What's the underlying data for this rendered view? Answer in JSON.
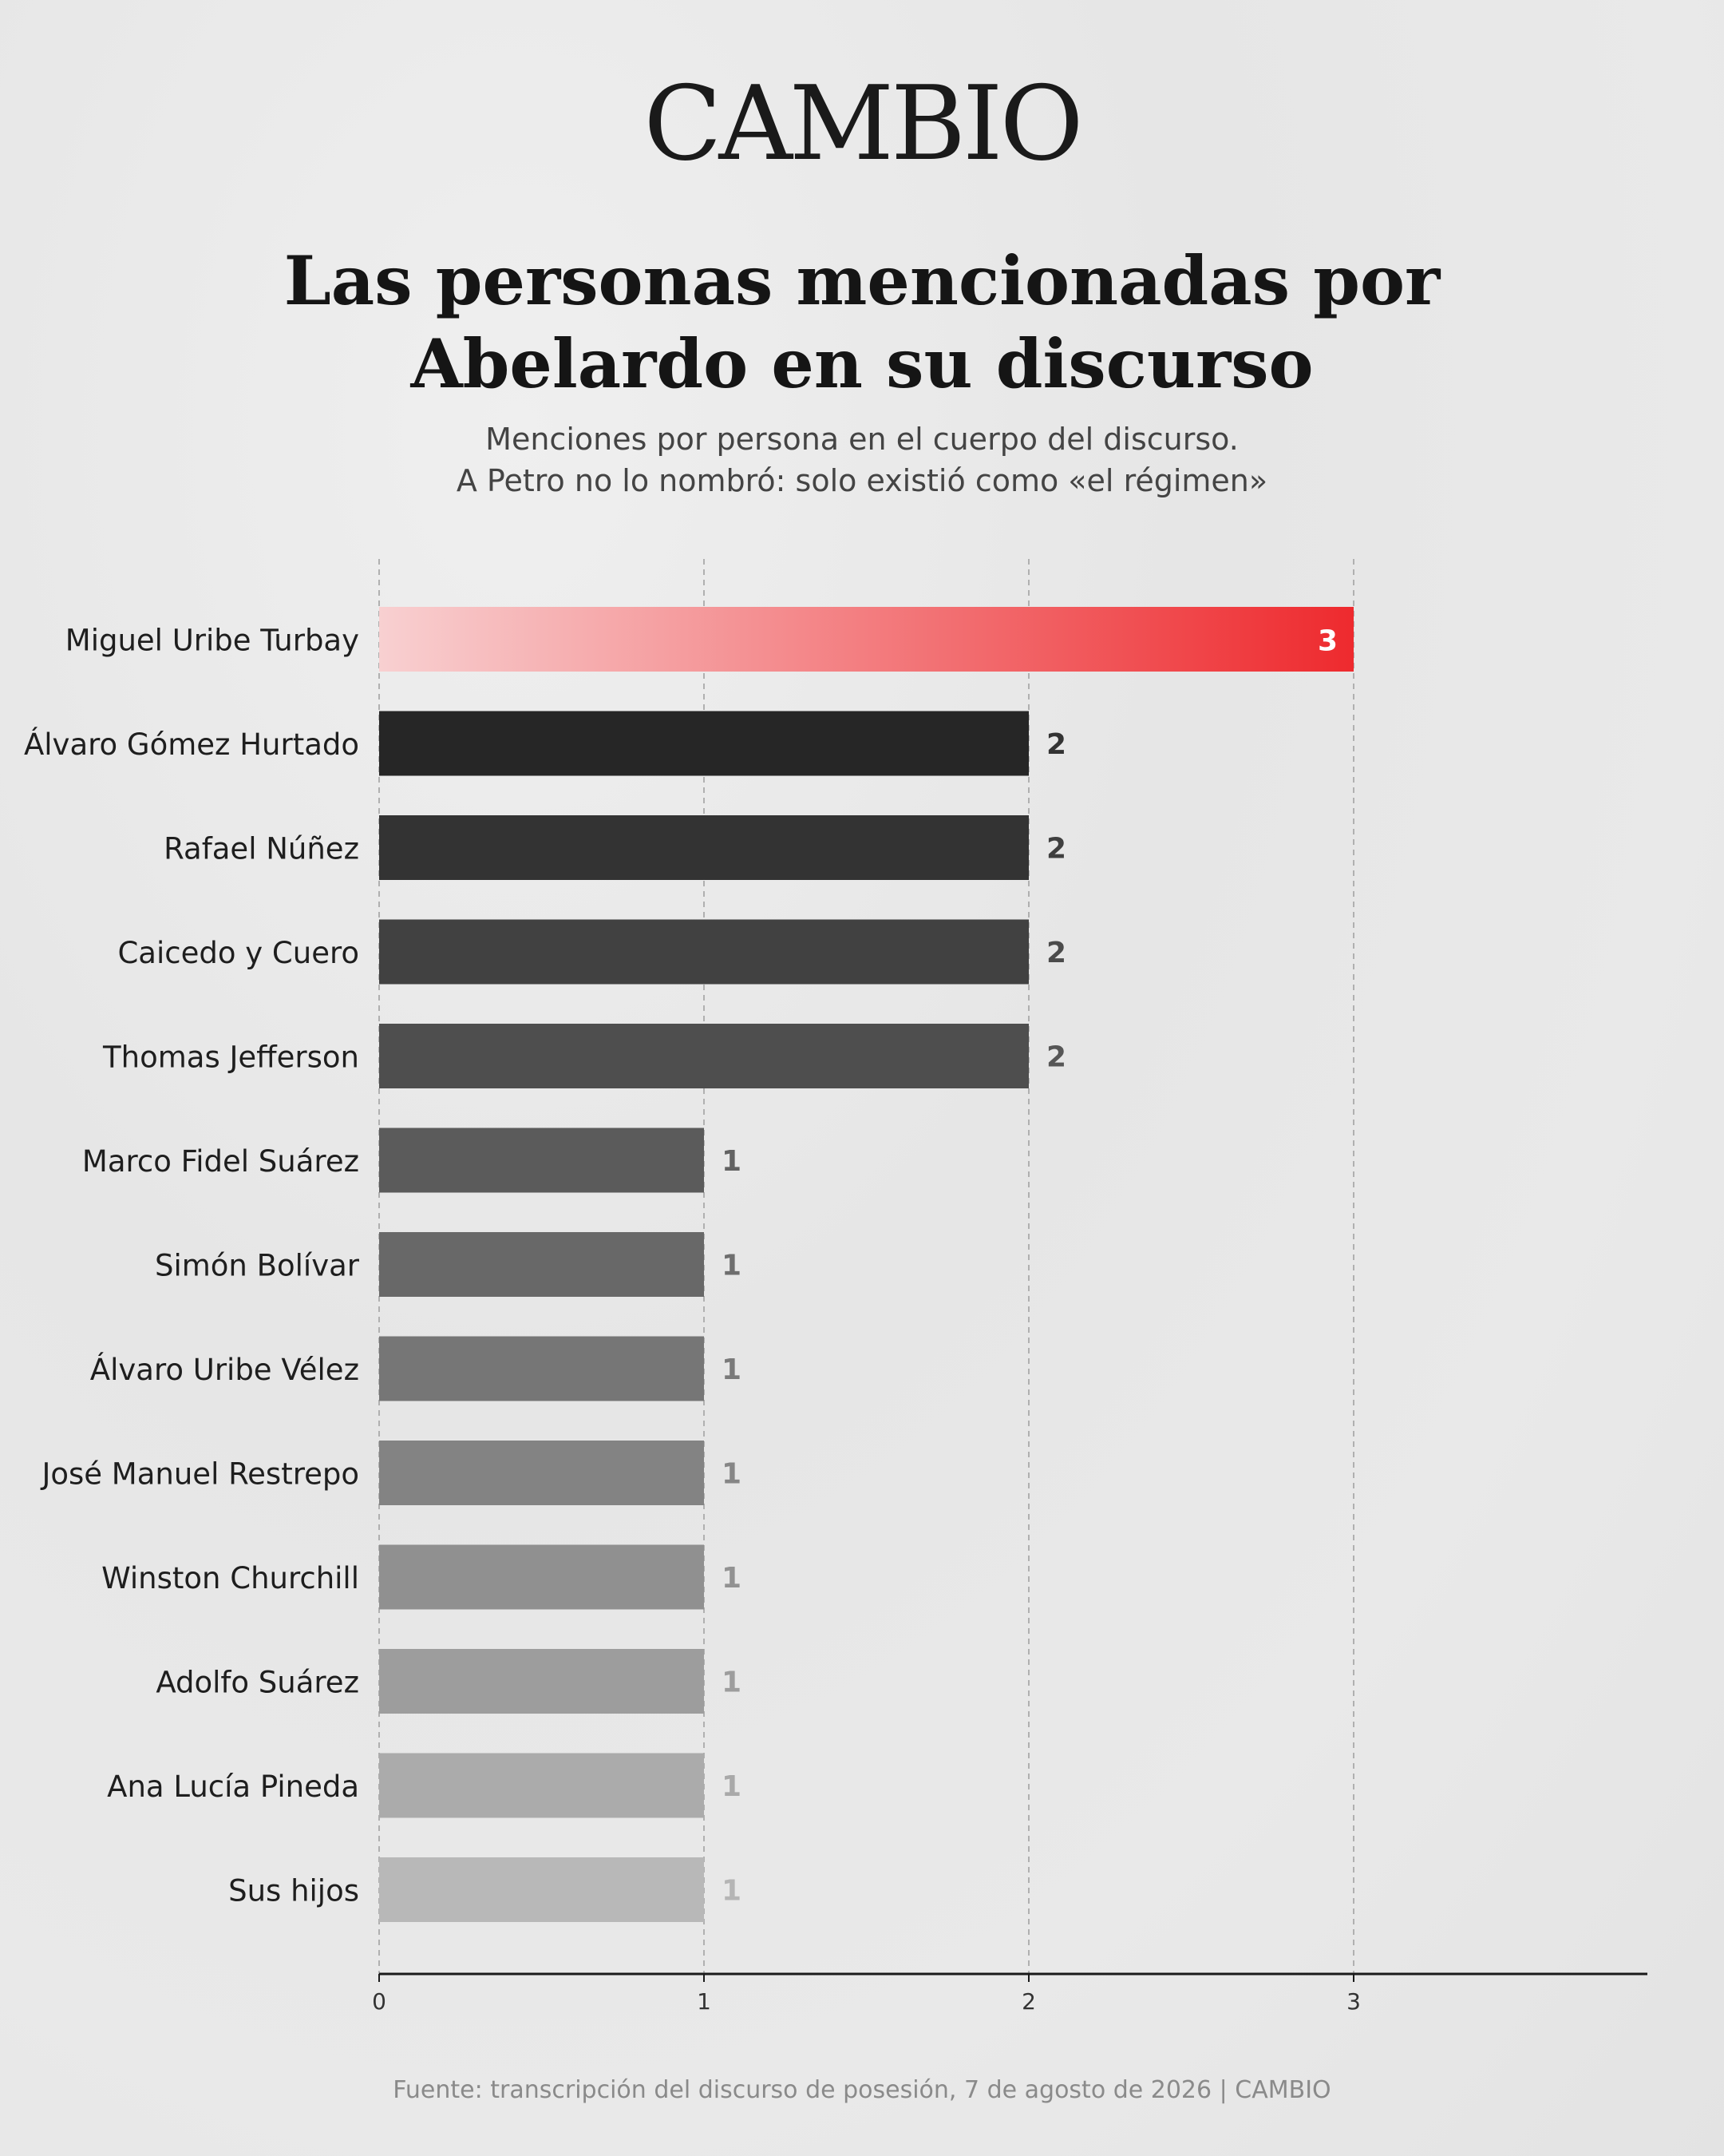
{
  "brand": "CAMBIO",
  "header": {
    "title_line1": "Las personas mencionadas por",
    "title_line2": "Abelardo en su discurso",
    "subtitle_line1": "Menciones por persona en el cuerpo del discurso.",
    "subtitle_line2": "A Petro no lo nombró: solo existió como «el régimen»"
  },
  "source": "Fuente: transcripción del discurso de posesión, 7 de agosto de 2026 | CAMBIO",
  "colors": {
    "highlight_start": "#f8d0d1",
    "highlight_end": "#ee2a2e",
    "bar_darkest": "#262626",
    "bar_lightest": "#b8b8b8"
  },
  "chart_data": {
    "type": "bar",
    "orientation": "horizontal",
    "categories": [
      "Miguel Uribe Turbay",
      "Álvaro Gómez Hurtado",
      "Rafael Núñez",
      "Caicedo y Cuero",
      "Thomas Jefferson",
      "Marco Fidel Suárez",
      "Simón Bolívar",
      "Álvaro Uribe Vélez",
      "José Manuel Restrepo",
      "Winston Churchill",
      "Adolfo Suárez",
      "Ana Lucía Pineda",
      "Sus hijos"
    ],
    "values": [
      3,
      2,
      2,
      2,
      2,
      1,
      1,
      1,
      1,
      1,
      1,
      1,
      1
    ],
    "data_labels": [
      "3",
      "2",
      "2",
      "2",
      "2",
      "1",
      "1",
      "1",
      "1",
      "1",
      "1",
      "1",
      "1"
    ],
    "xticks": [
      "0",
      "1",
      "2",
      "3"
    ],
    "xlim": [
      0,
      3.9
    ],
    "grid": true,
    "highlight_index": 0
  }
}
